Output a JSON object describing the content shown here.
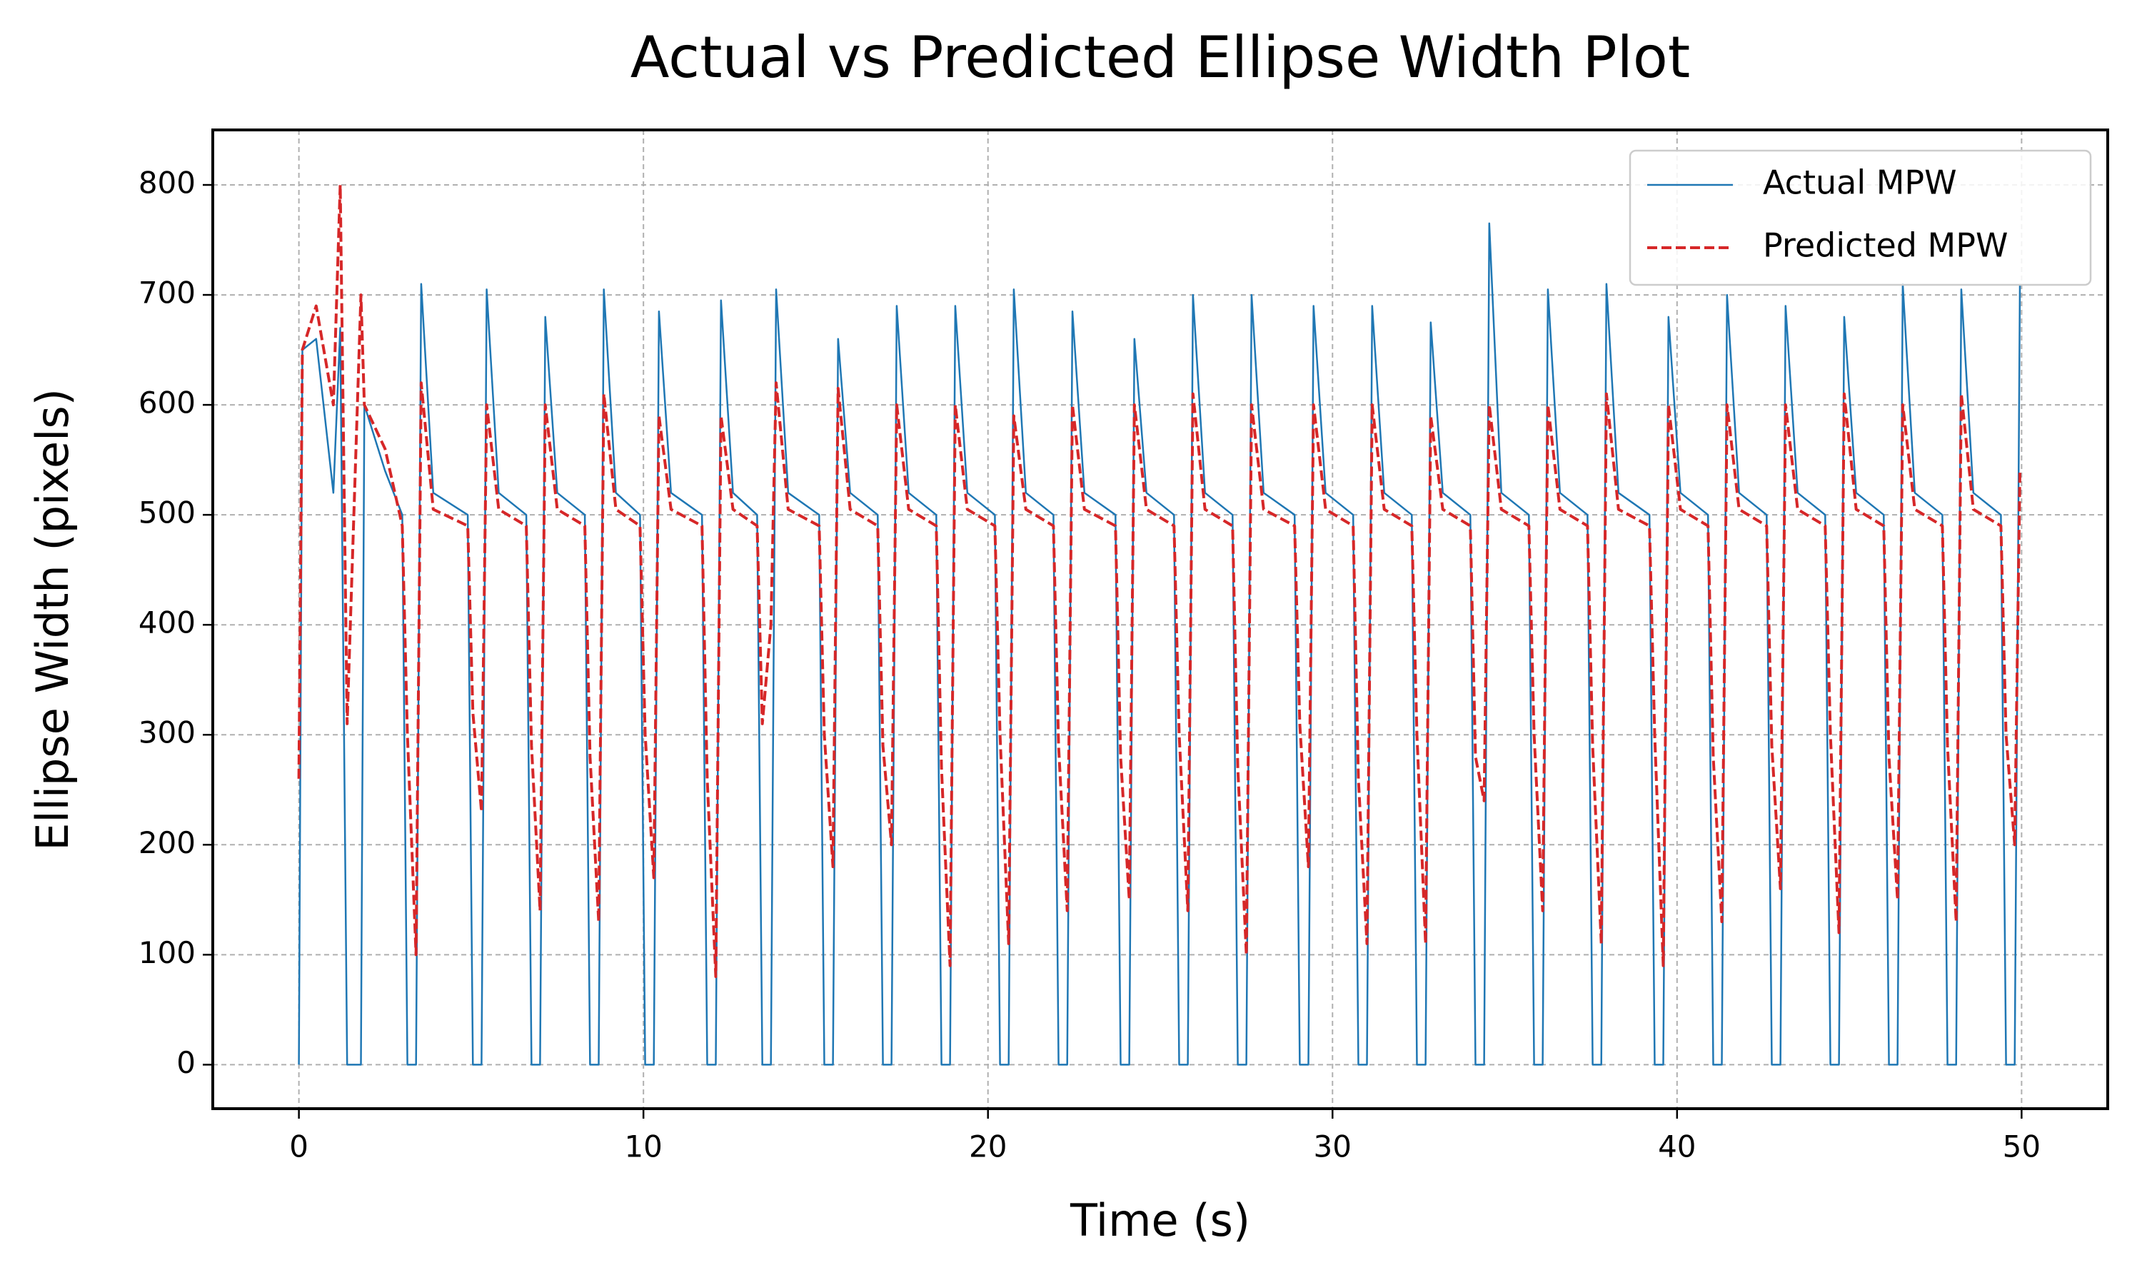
{
  "chart_data": {
    "type": "line",
    "title": "Actual vs Predicted Ellipse Width Plot",
    "x_label": "Time (s)",
    "y_label": "Ellipse Width (pixels)",
    "xlim": [
      -2.5,
      52.5
    ],
    "xticks": [
      0,
      10,
      20,
      30,
      40,
      50
    ],
    "ylim": [
      -40,
      850
    ],
    "yticks": [
      0,
      100,
      200,
      300,
      400,
      500,
      600,
      700,
      800
    ],
    "grid": true,
    "legend": "upper right",
    "x": [
      0,
      0.1,
      0.5,
      1.0,
      1.2,
      1.4,
      1.8,
      1.9,
      2.5,
      3.0,
      3.15,
      3.4,
      3.55,
      3.9,
      4.9,
      5.05,
      5.3,
      5.45,
      5.8,
      6.6,
      6.75,
      7.0,
      7.15,
      7.5,
      8.3,
      8.45,
      8.7,
      8.85,
      9.2,
      9.9,
      10.05,
      10.3,
      10.45,
      10.8,
      11.7,
      11.85,
      12.1,
      12.25,
      12.6,
      13.3,
      13.45,
      13.7,
      13.85,
      14.2,
      15.1,
      15.25,
      15.5,
      15.65,
      16.0,
      16.8,
      16.95,
      17.2,
      17.35,
      17.7,
      18.5,
      18.65,
      18.9,
      19.05,
      19.4,
      20.2,
      20.35,
      20.6,
      20.75,
      21.1,
      21.9,
      22.05,
      22.3,
      22.45,
      22.8,
      23.7,
      23.85,
      24.1,
      24.25,
      24.6,
      25.4,
      25.55,
      25.8,
      25.95,
      26.3,
      27.1,
      27.25,
      27.5,
      27.65,
      28.0,
      28.9,
      29.05,
      29.3,
      29.45,
      29.8,
      30.6,
      30.75,
      31.0,
      31.15,
      31.5,
      32.3,
      32.45,
      32.7,
      32.85,
      33.2,
      34.0,
      34.15,
      34.4,
      34.55,
      34.9,
      35.7,
      35.85,
      36.1,
      36.25,
      36.6,
      37.4,
      37.55,
      37.8,
      37.95,
      38.3,
      39.2,
      39.35,
      39.6,
      39.75,
      40.1,
      40.9,
      41.05,
      41.3,
      41.45,
      41.8,
      42.6,
      42.75,
      43.0,
      43.15,
      43.5,
      44.3,
      44.45,
      44.7,
      44.85,
      45.2,
      46.0,
      46.15,
      46.4,
      46.55,
      46.9,
      47.7,
      47.85,
      48.1,
      48.25,
      48.6,
      49.4,
      49.55,
      49.8,
      49.95
    ],
    "series": [
      {
        "name": "Actual MPW",
        "color": "#1f77b4",
        "dash": false,
        "values": [
          0,
          650,
          660,
          520,
          670,
          0,
          0,
          600,
          540,
          500,
          0,
          0,
          710,
          520,
          500,
          0,
          0,
          705,
          520,
          500,
          0,
          0,
          680,
          520,
          500,
          0,
          0,
          705,
          520,
          500,
          0,
          0,
          685,
          520,
          500,
          0,
          0,
          695,
          520,
          500,
          0,
          0,
          705,
          520,
          500,
          0,
          0,
          660,
          520,
          500,
          0,
          0,
          690,
          520,
          500,
          0,
          0,
          690,
          520,
          500,
          0,
          0,
          705,
          520,
          500,
          0,
          0,
          685,
          520,
          500,
          0,
          0,
          660,
          520,
          500,
          0,
          0,
          700,
          520,
          500,
          0,
          0,
          700,
          520,
          500,
          0,
          0,
          690,
          520,
          500,
          0,
          0,
          690,
          520,
          500,
          0,
          0,
          675,
          520,
          500,
          0,
          0,
          765,
          520,
          500,
          0,
          0,
          705,
          520,
          500,
          0,
          0,
          710,
          520,
          500,
          0,
          0,
          680,
          520,
          500,
          0,
          0,
          700,
          520,
          500,
          0,
          0,
          690,
          520,
          500,
          0,
          0,
          680,
          520,
          500,
          0,
          0,
          710,
          520,
          500,
          0,
          0,
          705,
          520,
          500,
          0,
          0,
          710
        ]
      },
      {
        "name": "Predicted MPW",
        "color": "#d62728",
        "dash": true,
        "values": [
          260,
          650,
          690,
          600,
          800,
          310,
          700,
          600,
          560,
          490,
          300,
          100,
          620,
          505,
          490,
          320,
          230,
          600,
          505,
          490,
          290,
          140,
          600,
          505,
          490,
          280,
          130,
          610,
          505,
          490,
          300,
          170,
          590,
          505,
          490,
          260,
          80,
          590,
          505,
          490,
          310,
          400,
          620,
          505,
          490,
          300,
          180,
          615,
          505,
          490,
          290,
          200,
          600,
          505,
          490,
          270,
          90,
          600,
          505,
          490,
          300,
          110,
          590,
          505,
          490,
          290,
          140,
          600,
          505,
          490,
          280,
          150,
          600,
          505,
          490,
          300,
          140,
          610,
          505,
          490,
          270,
          100,
          600,
          505,
          490,
          310,
          180,
          600,
          505,
          490,
          260,
          110,
          600,
          505,
          490,
          300,
          110,
          590,
          505,
          490,
          280,
          240,
          600,
          505,
          490,
          300,
          140,
          600,
          505,
          490,
          290,
          110,
          610,
          505,
          490,
          300,
          90,
          600,
          505,
          490,
          280,
          130,
          600,
          505,
          490,
          290,
          160,
          600,
          505,
          490,
          300,
          120,
          610,
          505,
          490,
          280,
          150,
          600,
          505,
          490,
          290,
          130,
          610,
          505,
          490,
          300,
          200,
          540
        ]
      }
    ]
  }
}
